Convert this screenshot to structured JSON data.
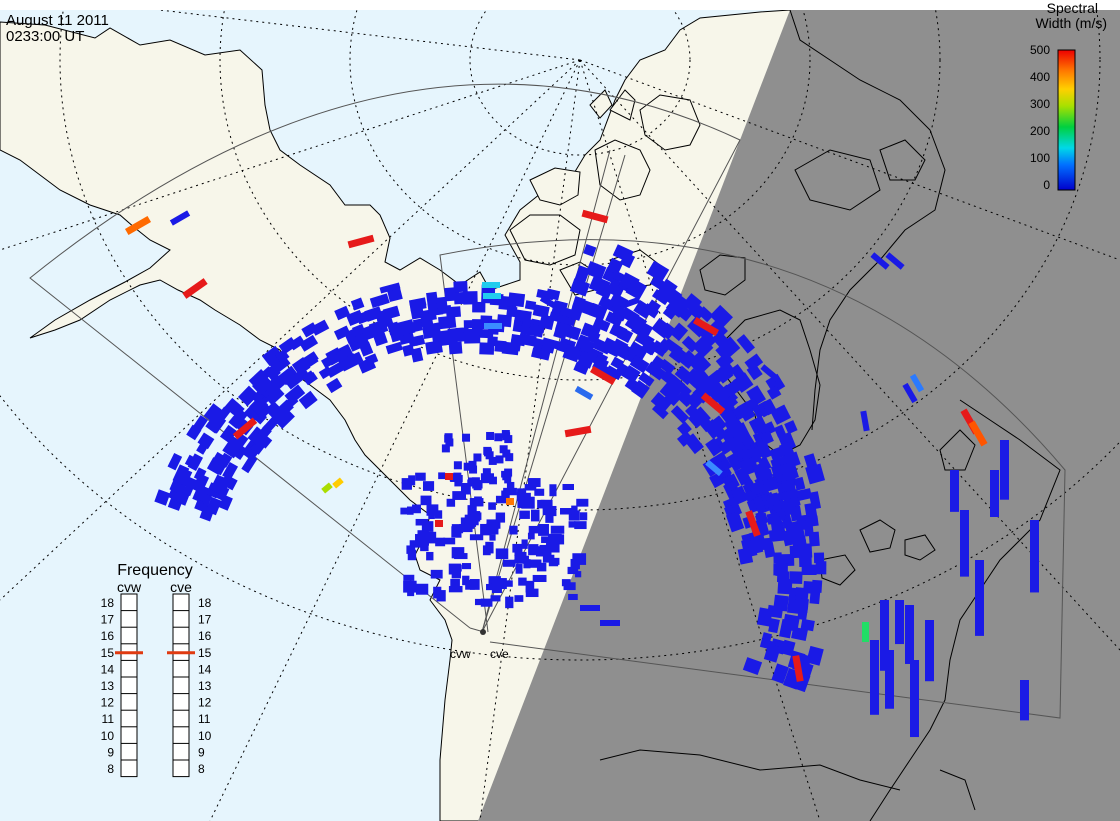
{
  "header": {
    "date": "August 11 2011",
    "time": "0233:00 UT"
  },
  "colorbar": {
    "title_line1": "Spectral",
    "title_line2": "Width (m/s)",
    "ticks": [
      "500",
      "400",
      "300",
      "200",
      "100",
      "0"
    ]
  },
  "frequency_panel": {
    "title": "Frequency",
    "radars": [
      {
        "name": "cvw",
        "value": 15
      },
      {
        "name": "cve",
        "value": 15
      }
    ],
    "ticks": [
      "18",
      "17",
      "16",
      "15",
      "14",
      "13",
      "12",
      "11",
      "10",
      "9",
      "8"
    ],
    "marker_color": "#e03a10"
  },
  "radar_labels": {
    "west": "cvw",
    "east": "cve"
  },
  "colors": {
    "ocean": "#e6f5fd",
    "land": "#f7f6ea",
    "night": "#8f8f8f",
    "scatter_low": "#1a1ae6",
    "scatter_high": "#e61a1a"
  }
}
